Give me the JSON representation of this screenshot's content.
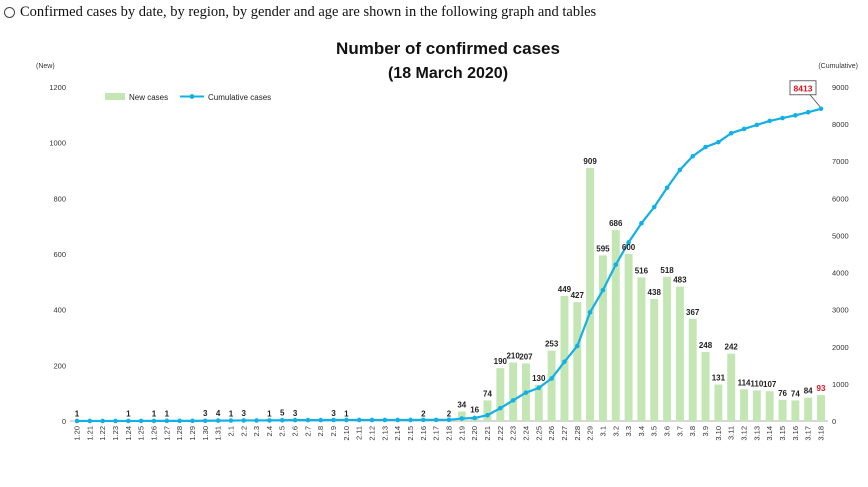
{
  "intro": {
    "text": "Confirmed cases by date, by region, by gender and age are shown in the following graph and tables"
  },
  "chart_data": {
    "type": "bar",
    "title": "Number of confirmed cases",
    "subtitle": "(18 March 2020)",
    "ylabel": "(New)",
    "y2label": "(Cumulative)",
    "ylim": [
      0,
      1200
    ],
    "y2lim": [
      0,
      9000
    ],
    "yticks": [
      "0",
      "200",
      "400",
      "600",
      "800",
      "1000",
      "1200"
    ],
    "y2ticks": [
      "0",
      "1000",
      "2000",
      "3000",
      "4000",
      "5000",
      "6000",
      "7000",
      "8000",
      "9000"
    ],
    "legend": {
      "new": "New cases",
      "cumulative": "Cumulative cases"
    },
    "final_cumulative_label": "8413",
    "categories": [
      "1.20",
      "1.21",
      "1.22",
      "1.23",
      "1.24",
      "1.25",
      "1.26",
      "1.27",
      "1.28",
      "1.29",
      "1.30",
      "1.31",
      "2.1",
      "2.2",
      "2.3",
      "2.4",
      "2.5",
      "2.6",
      "2.7",
      "2.8",
      "2.9",
      "2.10",
      "2.11",
      "2.12",
      "2.13",
      "2.14",
      "2.15",
      "2.16",
      "2.17",
      "2.18",
      "2.19",
      "2.20",
      "2.21",
      "2.22",
      "2.23",
      "2.24",
      "2.25",
      "2.26",
      "2.27",
      "2.28",
      "2.29",
      "3.1",
      "3.2",
      "3.3",
      "3.4",
      "3.5",
      "3.6",
      "3.7",
      "3.8",
      "3.9",
      "3.10",
      "3.11",
      "3.12",
      "3.13",
      "3.14",
      "3.15",
      "3.16",
      "3.17",
      "3.18"
    ],
    "series": [
      {
        "name": "New cases",
        "values": [
          1,
          0,
          0,
          0,
          1,
          0,
          1,
          1,
          0,
          0,
          3,
          4,
          1,
          3,
          0,
          1,
          5,
          3,
          0,
          0,
          3,
          1,
          0,
          0,
          0,
          0,
          0,
          2,
          0,
          2,
          34,
          16,
          74,
          190,
          210,
          207,
          130,
          253,
          449,
          427,
          909,
          595,
          686,
          600,
          516,
          438,
          518,
          483,
          367,
          248,
          131,
          242,
          114,
          110,
          107,
          76,
          74,
          84,
          93
        ]
      },
      {
        "name": "Cumulative cases",
        "values": [
          1,
          1,
          1,
          1,
          2,
          2,
          3,
          4,
          4,
          4,
          7,
          11,
          12,
          15,
          15,
          16,
          21,
          24,
          24,
          24,
          27,
          28,
          28,
          28,
          28,
          28,
          28,
          30,
          30,
          32,
          66,
          82,
          156,
          346,
          556,
          763,
          893,
          1146,
          1595,
          2022,
          2931,
          3526,
          4212,
          4812,
          5328,
          5766,
          6284,
          6767,
          7134,
          7382,
          7513,
          7755,
          7869,
          7979,
          8086,
          8162,
          8236,
          8320,
          8413
        ]
      }
    ]
  }
}
